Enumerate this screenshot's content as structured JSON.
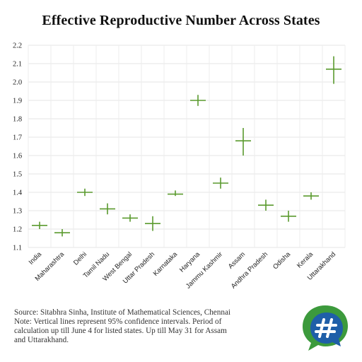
{
  "title": "Effective Reproductive Number Across States",
  "chart_data": {
    "type": "errorbar",
    "title": "Effective Reproductive Number Across States",
    "categories": [
      "India",
      "Maharashtra",
      "Delhi",
      "Tamil Nadu",
      "West Bengal",
      "Uttar Pradesh",
      "Karnataka",
      "Haryana",
      "Jammu Kashmir",
      "Assam",
      "Andhra Pradesh",
      "Odisha",
      "Kerala",
      "Uttarakhand"
    ],
    "values": [
      1.22,
      1.18,
      1.4,
      1.31,
      1.26,
      1.23,
      1.39,
      1.9,
      1.45,
      1.68,
      1.33,
      1.27,
      1.38,
      2.07
    ],
    "ci_low": [
      1.2,
      1.16,
      1.38,
      1.28,
      1.24,
      1.19,
      1.38,
      1.87,
      1.42,
      1.6,
      1.3,
      1.24,
      1.36,
      1.99
    ],
    "ci_high": [
      1.24,
      1.2,
      1.42,
      1.34,
      1.28,
      1.27,
      1.41,
      1.93,
      1.48,
      1.75,
      1.36,
      1.3,
      1.4,
      2.14
    ],
    "yticks": [
      "1.1",
      "1.2",
      "1.3",
      "1.4",
      "1.5",
      "1.6",
      "1.7",
      "1.8",
      "1.9",
      "2.0",
      "2.1",
      "2.2"
    ],
    "ylim": [
      1.1,
      2.2
    ],
    "grid": true,
    "color": "#5a9a2e"
  },
  "notes": [
    "Source: Sitabhra Sinha, Institute of Mathematical Sciences, Chennai",
    "Note: Vertical lines represent 95% confidence intervals. Period of",
    "calculation up till June 4 for listed states. Up till May 31 for Assam",
    "and Uttarakhand."
  ],
  "logo": {
    "icon": "chat-bubbles-hashtag-icon",
    "colors": [
      "#3c9a3c",
      "#1f5fa8"
    ]
  }
}
